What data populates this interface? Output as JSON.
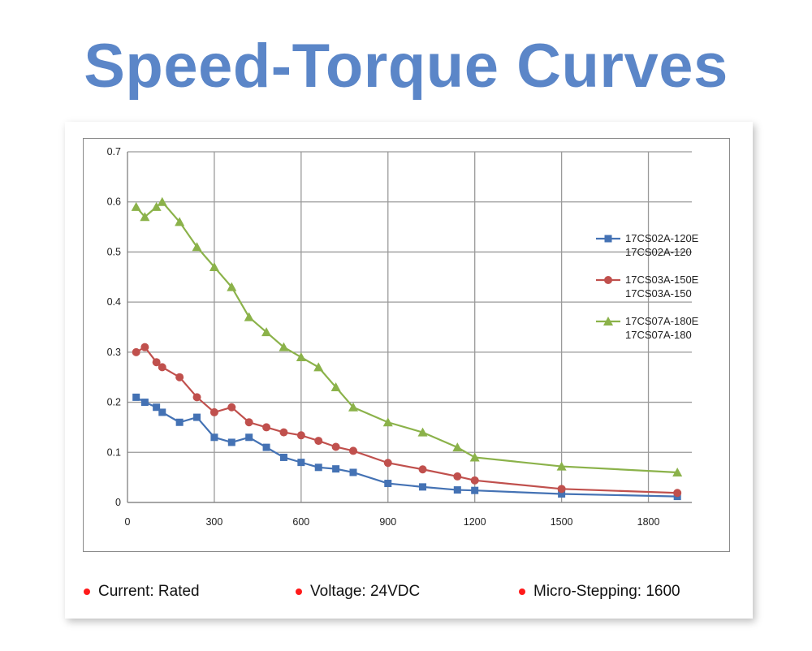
{
  "title": "Speed-Torque Curves",
  "chart_data": {
    "type": "line",
    "xlim": [
      0,
      1950
    ],
    "ylim": [
      0,
      0.7
    ],
    "xticks": [
      "0",
      "300",
      "600",
      "900",
      "1200",
      "1500",
      "1800"
    ],
    "xtick_values": [
      0,
      300,
      600,
      900,
      1200,
      1500,
      1800
    ],
    "yticks": [
      "0",
      "0.1",
      "0.2",
      "0.3",
      "0.4",
      "0.5",
      "0.6",
      "0.7"
    ],
    "ytick_values": [
      0,
      0.1,
      0.2,
      0.3,
      0.4,
      0.5,
      0.6,
      0.7
    ],
    "grid": true,
    "legend_position": "right",
    "series": [
      {
        "name": "17CS02A-120E 17CS02A-120",
        "label_lines": [
          "17CS02A-120E",
          "17CS02A-120"
        ],
        "color": "#4472b4",
        "marker": "square",
        "x": [
          30,
          60,
          100,
          120,
          180,
          240,
          300,
          360,
          420,
          480,
          540,
          600,
          660,
          720,
          780,
          900,
          1020,
          1140,
          1200,
          1500,
          1900
        ],
        "y": [
          0.21,
          0.2,
          0.19,
          0.18,
          0.16,
          0.17,
          0.13,
          0.12,
          0.13,
          0.11,
          0.09,
          0.08,
          0.07,
          0.067,
          0.06,
          0.038,
          0.031,
          0.025,
          0.024,
          0.017,
          0.012
        ]
      },
      {
        "name": "17CS03A-150E 17CS03A-150",
        "label_lines": [
          "17CS03A-150E",
          "17CS03A-150"
        ],
        "color": "#c0504d",
        "marker": "circle",
        "x": [
          30,
          60,
          100,
          120,
          180,
          240,
          300,
          360,
          420,
          480,
          540,
          600,
          660,
          720,
          780,
          900,
          1020,
          1140,
          1200,
          1500,
          1900
        ],
        "y": [
          0.3,
          0.31,
          0.28,
          0.27,
          0.25,
          0.21,
          0.18,
          0.19,
          0.16,
          0.15,
          0.14,
          0.134,
          0.123,
          0.111,
          0.103,
          0.079,
          0.066,
          0.052,
          0.044,
          0.027,
          0.019
        ]
      },
      {
        "name": "17CS07A-180E 17CS07A-180",
        "label_lines": [
          "17CS07A-180E",
          "17CS07A-180"
        ],
        "color": "#8bb24a",
        "marker": "triangle",
        "x": [
          30,
          60,
          100,
          120,
          180,
          240,
          300,
          360,
          420,
          480,
          540,
          600,
          660,
          720,
          780,
          900,
          1020,
          1140,
          1200,
          1500,
          1900
        ],
        "y": [
          0.59,
          0.57,
          0.59,
          0.6,
          0.56,
          0.51,
          0.47,
          0.43,
          0.37,
          0.34,
          0.31,
          0.29,
          0.27,
          0.23,
          0.19,
          0.16,
          0.14,
          0.11,
          0.09,
          0.072,
          0.06
        ]
      }
    ]
  },
  "notes": [
    {
      "label": "Current: Rated"
    },
    {
      "label": "Voltage: 24VDC"
    },
    {
      "label": "Micro-Stepping: 1600"
    }
  ],
  "colors": {
    "title": "#5b86c8",
    "bullet": "#ff1a1a",
    "grid": "#9a9a9a"
  }
}
